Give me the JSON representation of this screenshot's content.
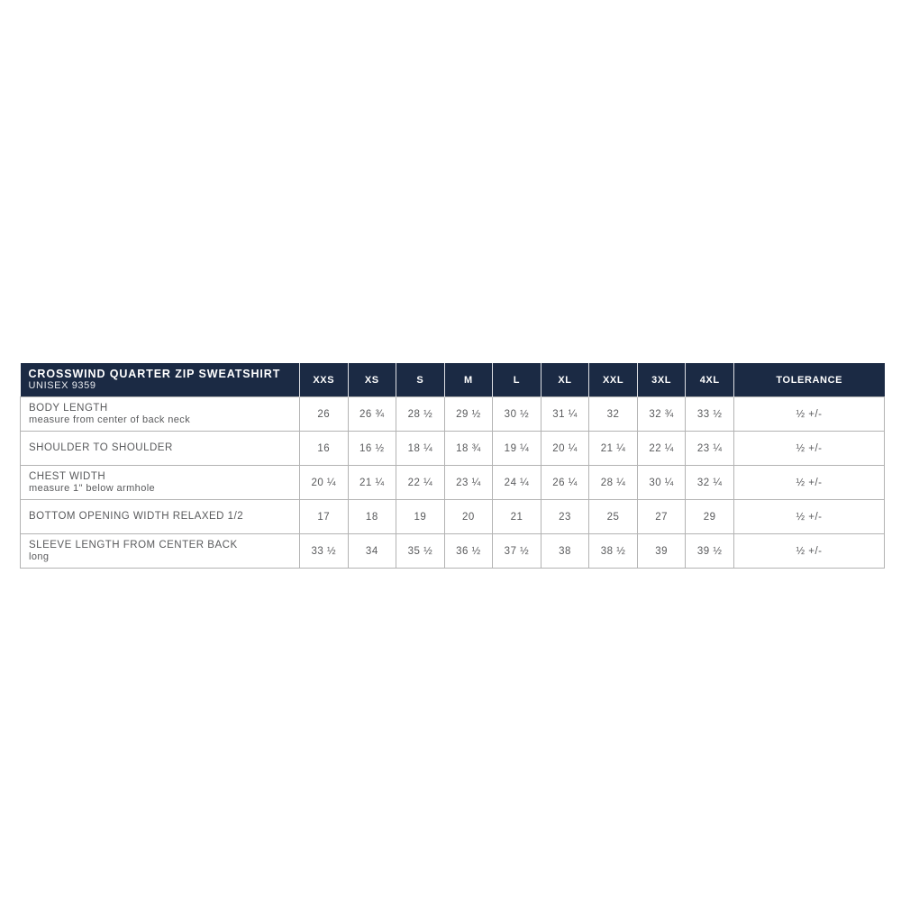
{
  "colors": {
    "header_bg": "#1b2a44",
    "header_text": "#ffffff",
    "body_text": "#595a5c",
    "border": "#b3b3b3",
    "page_bg": "#ffffff"
  },
  "table": {
    "title": "CROSSWIND QUARTER ZIP SWEATSHIRT",
    "subtitle": "UNISEX 9359",
    "size_columns": [
      "XXS",
      "XS",
      "S",
      "M",
      "L",
      "XL",
      "XXL",
      "3XL",
      "4XL"
    ],
    "tolerance_label": "TOLERANCE",
    "rows": [
      {
        "label": "BODY LENGTH",
        "sublabel": "measure from center of back neck",
        "values": [
          "26",
          "26 ¾",
          "28 ½",
          "29 ½",
          "30 ½",
          "31 ¼",
          "32",
          "32 ¾",
          "33 ½"
        ],
        "tolerance": "½ +/-"
      },
      {
        "label": "SHOULDER TO SHOULDER",
        "sublabel": "",
        "values": [
          "16",
          "16 ½",
          "18 ¼",
          "18 ¾",
          "19 ¼",
          "20 ¼",
          "21 ¼",
          "22 ¼",
          "23 ¼"
        ],
        "tolerance": "½ +/-"
      },
      {
        "label": "CHEST WIDTH",
        "sublabel": "measure 1\" below armhole",
        "values": [
          "20 ¼",
          "21 ¼",
          "22 ¼",
          "23 ¼",
          "24 ¼",
          "26 ¼",
          "28 ¼",
          "30 ¼",
          "32 ¼"
        ],
        "tolerance": "½ +/-"
      },
      {
        "label": "BOTTOM OPENING WIDTH RELAXED 1/2",
        "sublabel": "",
        "values": [
          "17",
          "18",
          "19",
          "20",
          "21",
          "23",
          "25",
          "27",
          "29"
        ],
        "tolerance": "½ +/-"
      },
      {
        "label": "SLEEVE LENGTH FROM CENTER BACK",
        "sublabel": "long",
        "values": [
          "33 ½",
          "34",
          "35 ½",
          "36 ½",
          "37 ½",
          "38",
          "38 ½",
          "39",
          "39 ½"
        ],
        "tolerance": "½ +/-"
      }
    ]
  }
}
